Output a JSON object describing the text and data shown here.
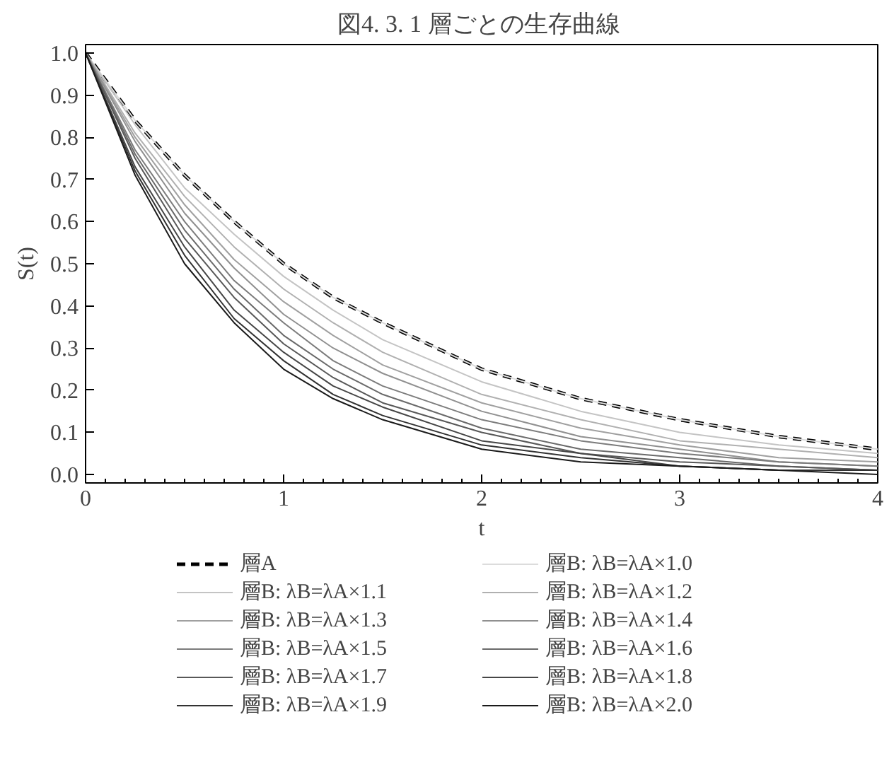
{
  "chart_data": {
    "type": "line",
    "title": "図4. 3. 1  層ごとの生存曲線",
    "xlabel": "t",
    "ylabel": "S(t)",
    "x": [
      0,
      0.25,
      0.5,
      0.75,
      1,
      1.25,
      1.5,
      2,
      2.5,
      3,
      3.5,
      4
    ],
    "xlim": [
      0,
      4
    ],
    "xticks": [
      0,
      1,
      2,
      3,
      4
    ],
    "ylim": [
      -0.02,
      1.02
    ],
    "yticks": [
      {
        "value": 0,
        "label": "0.0"
      },
      {
        "value": 0.1,
        "label": "0.1"
      },
      {
        "value": 0.2,
        "label": "0.2"
      },
      {
        "value": 0.3,
        "label": "0.3"
      },
      {
        "value": 0.4,
        "label": "0.4"
      },
      {
        "value": 0.5,
        "label": "0.5"
      },
      {
        "value": 0.6,
        "label": "0.6"
      },
      {
        "value": 0.7,
        "label": "0.7"
      },
      {
        "value": 0.8,
        "label": "0.8"
      },
      {
        "value": 0.9,
        "label": "0.9"
      },
      {
        "value": 1,
        "label": "1.0"
      }
    ],
    "grid": false,
    "legend": "bottom",
    "marker": "none",
    "series": [
      {
        "name": "層A",
        "color": "#000000",
        "line_style": "dashed",
        "values": [
          1,
          0.84,
          0.71,
          0.6,
          0.5,
          0.42,
          0.36,
          0.25,
          0.18,
          0.13,
          0.09,
          0.06
        ]
      },
      {
        "name": "層B: λB=λA×1.0",
        "color": "#dcdcdc",
        "values": [
          1,
          0.84,
          0.71,
          0.6,
          0.5,
          0.42,
          0.36,
          0.25,
          0.18,
          0.13,
          0.09,
          0.06
        ]
      },
      {
        "name": "層B: λB=λA×1.1",
        "color": "#c4c4c4",
        "values": [
          1,
          0.83,
          0.68,
          0.57,
          0.47,
          0.39,
          0.32,
          0.22,
          0.15,
          0.1,
          0.07,
          0.05
        ]
      },
      {
        "name": "層B: λB=λA×1.2",
        "color": "#b0b0b0",
        "values": [
          1,
          0.81,
          0.66,
          0.54,
          0.44,
          0.36,
          0.29,
          0.19,
          0.13,
          0.08,
          0.06,
          0.04
        ]
      },
      {
        "name": "層B: λB=λA×1.3",
        "color": "#a0a0a0",
        "values": [
          1,
          0.8,
          0.64,
          0.51,
          0.41,
          0.33,
          0.26,
          0.17,
          0.11,
          0.07,
          0.04,
          0.03
        ]
      },
      {
        "name": "層B: λB=λA×1.4",
        "color": "#909090",
        "values": [
          1,
          0.79,
          0.62,
          0.49,
          0.38,
          0.3,
          0.24,
          0.15,
          0.09,
          0.06,
          0.03,
          0.02
        ]
      },
      {
        "name": "層B: λB=λA×1.5",
        "color": "#7c7c7c",
        "values": [
          1,
          0.77,
          0.6,
          0.46,
          0.36,
          0.27,
          0.21,
          0.13,
          0.08,
          0.05,
          0.03,
          0.02
        ]
      },
      {
        "name": "層B: λB=λA×1.6",
        "color": "#6a6a6a",
        "values": [
          1,
          0.76,
          0.58,
          0.44,
          0.33,
          0.25,
          0.19,
          0.11,
          0.06,
          0.04,
          0.02,
          0.01
        ]
      },
      {
        "name": "層B: λB=λA×1.7",
        "color": "#585858",
        "values": [
          1,
          0.75,
          0.56,
          0.42,
          0.31,
          0.23,
          0.17,
          0.1,
          0.05,
          0.03,
          0.02,
          0.01
        ]
      },
      {
        "name": "層B: λB=λA×1.8",
        "color": "#464646",
        "values": [
          1,
          0.73,
          0.54,
          0.39,
          0.29,
          0.21,
          0.16,
          0.08,
          0.05,
          0.02,
          0.01,
          0.01
        ]
      },
      {
        "name": "層B: λB=λA×1.9",
        "color": "#323232",
        "values": [
          1,
          0.72,
          0.52,
          0.37,
          0.27,
          0.19,
          0.14,
          0.07,
          0.04,
          0.02,
          0.01,
          0.01
        ]
      },
      {
        "name": "層B: λB=λA×2.0",
        "color": "#1a1a1a",
        "values": [
          1,
          0.71,
          0.5,
          0.36,
          0.25,
          0.18,
          0.13,
          0.06,
          0.03,
          0.02,
          0.01,
          0.0
        ]
      }
    ]
  }
}
